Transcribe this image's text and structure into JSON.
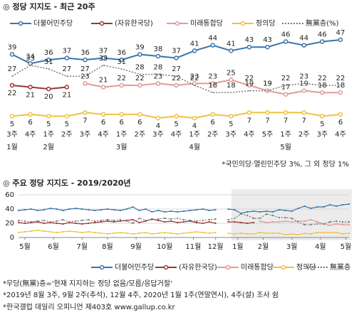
{
  "chart_data": [
    {
      "type": "line",
      "title": "◎  정당 지지도 - 최근 20주",
      "categories": [
        [
          "3주",
          "1월"
        ],
        [
          "4주"
        ],
        [
          "1주",
          "2월"
        ],
        [
          "2주"
        ],
        [
          "3주"
        ],
        [
          "4주"
        ],
        [
          "1주",
          "3월"
        ],
        [
          "2주"
        ],
        [
          "3주"
        ],
        [
          "4주"
        ],
        [
          "1주",
          "4월"
        ],
        [
          "2주"
        ],
        [
          "3주"
        ],
        [
          "4주"
        ],
        [
          "5주"
        ],
        [
          "1주",
          "5월"
        ],
        [
          "2주"
        ],
        [
          "3주"
        ],
        [
          "4주"
        ]
      ],
      "series": [
        {
          "name": "더불어민주당",
          "color": "#3b74ad",
          "label_color": "#333333",
          "label_pos": "above",
          "values": [
            39,
            34,
            36,
            37,
            36,
            37,
            36,
            39,
            38,
            37,
            41,
            44,
            41,
            43,
            43,
            46,
            44,
            46,
            47
          ]
        },
        {
          "name": "(자유한국당)",
          "color": "#9e3535",
          "label_color": "#9e3535",
          "label_pos": "below",
          "values": [
            22,
            21,
            20,
            21,
            null,
            null,
            null,
            null,
            null,
            null,
            null,
            null,
            null,
            null,
            null,
            null,
            null,
            null,
            null
          ]
        },
        {
          "name": "미래통합당",
          "color": "#e29a9a",
          "label_color": "#d97f7f",
          "label_pos": "above",
          "values": [
            null,
            null,
            null,
            null,
            23,
            21,
            22,
            22,
            23,
            22,
            23,
            23,
            25,
            22,
            19,
            17,
            19,
            18,
            18
          ]
        },
        {
          "name": "정의당",
          "color": "#f2c040",
          "label_color": "#333333",
          "label_pos": "below",
          "values": [
            5,
            6,
            5,
            5,
            7,
            6,
            6,
            6,
            4,
            5,
            4,
            6,
            5,
            7,
            7,
            7,
            7,
            5,
            6
          ]
        },
        {
          "name": "無黨층(%)",
          "color": "#777777",
          "label_color": "#333333",
          "label_pos": "above",
          "dash": true,
          "values": [
            27,
            33,
            31,
            27,
            27,
            33,
            31,
            28,
            28,
            27,
            22,
            18,
            18,
            19,
            19,
            22,
            23,
            22,
            22
          ]
        }
      ],
      "note": "*국민의당·열린민주당 3%, 그 외 정당 1%"
    },
    {
      "type": "line",
      "title": "◎  주요 정당 지지도 - 2019/2020년",
      "ylim": [
        0,
        60
      ],
      "yticks": [
        0,
        20,
        40,
        60
      ],
      "grid": true,
      "xlim": [
        0,
        52
      ],
      "xticks": [
        {
          "value": 1,
          "label": "5월"
        },
        {
          "value": 5.5,
          "label": "6월"
        },
        {
          "value": 10,
          "label": "7월"
        },
        {
          "value": 14,
          "label": "8월"
        },
        {
          "value": 18.5,
          "label": "9월"
        },
        {
          "value": 23,
          "label": "10월"
        },
        {
          "value": 27.5,
          "label": "11월"
        },
        {
          "value": 31,
          "label": "12월"
        },
        {
          "value": 34.5,
          "label": "1월"
        },
        {
          "value": 38.5,
          "label": "2월"
        },
        {
          "value": 43,
          "label": "3월"
        },
        {
          "value": 47.5,
          "label": "4월"
        },
        {
          "value": 51.5,
          "label": "5월"
        }
      ],
      "series": [
        {
          "name": "더불어민주당",
          "color": "#3b74ad",
          "values": [
            38,
            39,
            40,
            38,
            39,
            41,
            40,
            38,
            40,
            41,
            40,
            39,
            38,
            39,
            40,
            39,
            38,
            40,
            43,
            38,
            40,
            36,
            38,
            36,
            37,
            36,
            37,
            38,
            39,
            40,
            38,
            39,
            null,
            40,
            39,
            34,
            36,
            37,
            36,
            37,
            36,
            39,
            38,
            37,
            41,
            44,
            41,
            43,
            43,
            46,
            44,
            46,
            47
          ]
        },
        {
          "name": "(자유한국당)",
          "color": "#9e3535",
          "values": [
            21,
            20,
            21,
            22,
            20,
            21,
            20,
            19,
            21,
            20,
            19,
            20,
            21,
            22,
            23,
            22,
            23,
            24,
            25,
            21,
            23,
            26,
            24,
            22,
            23,
            21,
            22,
            23,
            21,
            20,
            22,
            20,
            null,
            22,
            22,
            21,
            20,
            21,
            null,
            null,
            null,
            null,
            null,
            null,
            null,
            null,
            null,
            null,
            null,
            null,
            null,
            null,
            null
          ]
        },
        {
          "name": "미래통합당",
          "color": "#e29a9a",
          "values": [
            null,
            null,
            null,
            null,
            null,
            null,
            null,
            null,
            null,
            null,
            null,
            null,
            null,
            null,
            null,
            null,
            null,
            null,
            null,
            null,
            null,
            null,
            null,
            null,
            null,
            null,
            null,
            null,
            null,
            null,
            null,
            null,
            null,
            null,
            null,
            null,
            null,
            null,
            23,
            21,
            22,
            22,
            23,
            22,
            23,
            23,
            25,
            22,
            19,
            17,
            19,
            18,
            18
          ]
        },
        {
          "name": "정의당",
          "color": "#f2c040",
          "values": [
            7,
            8,
            9,
            10,
            9,
            8,
            7,
            8,
            9,
            8,
            7,
            8,
            7,
            6,
            5,
            6,
            7,
            6,
            5,
            6,
            7,
            5,
            6,
            7,
            6,
            5,
            6,
            7,
            8,
            7,
            6,
            7,
            null,
            6,
            5,
            6,
            5,
            5,
            7,
            6,
            6,
            6,
            4,
            5,
            4,
            6,
            5,
            7,
            7,
            7,
            7,
            5,
            6
          ]
        },
        {
          "name": "無黨층",
          "color": "#777777",
          "dash": true,
          "values": [
            24,
            23,
            22,
            23,
            24,
            22,
            23,
            25,
            22,
            23,
            24,
            25,
            23,
            24,
            25,
            24,
            25,
            23,
            20,
            27,
            24,
            25,
            26,
            27,
            26,
            27,
            25,
            24,
            23,
            24,
            25,
            26,
            null,
            25,
            27,
            33,
            31,
            27,
            27,
            33,
            31,
            28,
            28,
            27,
            22,
            18,
            18,
            19,
            19,
            22,
            23,
            22,
            22
          ]
        }
      ]
    }
  ],
  "footnotes": [
    "*무당(無黨)층='현재 지지하는 정당 없음/모름/응답거절'",
    "*2019년 8월 3주, 9월 2주(추석), 12월 4주, 2020년 1월 1주(연말연시), 4주(설) 조사 쉼",
    "*한국갤럽 데일리 오피니언 제403호 www.gallup.co.kr"
  ]
}
